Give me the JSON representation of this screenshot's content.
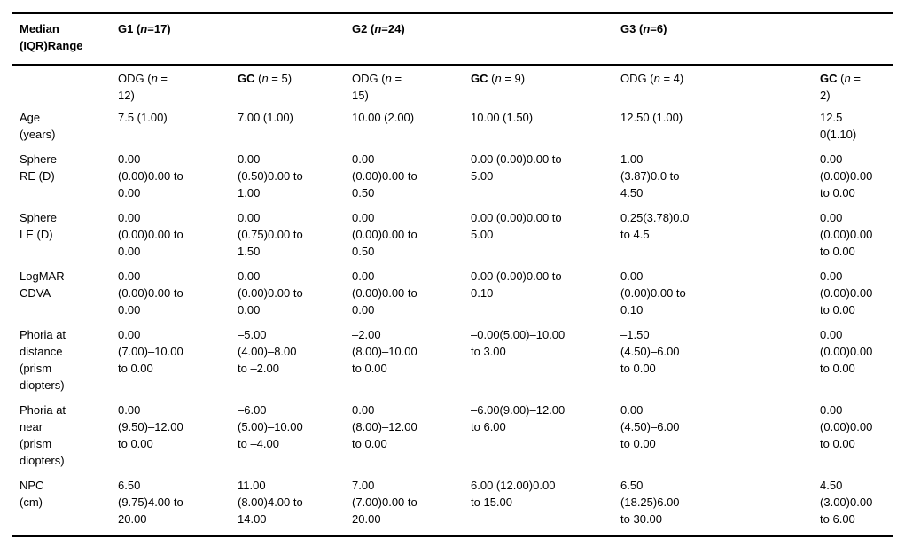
{
  "colors": {
    "text": "#000000",
    "background": "#ffffff",
    "rule": "#000000"
  },
  "table": {
    "corner_header": "Median\n(IQR)Range",
    "groups": [
      {
        "pre": "G1 (",
        "n": "n",
        "post": "=17)"
      },
      {
        "pre": "G2 (",
        "n": "n",
        "post": "=24)"
      },
      {
        "pre": "G3 (",
        "n": "n",
        "post": "=6)"
      }
    ],
    "subheaders": [
      {
        "name": "ODG",
        "pre": " (",
        "n": "n",
        "post": " =\n12)"
      },
      {
        "name": "GC",
        "pre": " (",
        "n": "n",
        "post": " = 5)"
      },
      {
        "name": "ODG",
        "pre": " (",
        "n": "n",
        "post": " =\n15)"
      },
      {
        "name": "GC",
        "pre": " (",
        "n": "n",
        "post": " = 9)"
      },
      {
        "name": "ODG",
        "pre": " (",
        "n": "n",
        "post": " = 4)"
      },
      {
        "name": "GC",
        "pre": " (",
        "n": "n",
        "post": " =\n2)"
      }
    ],
    "rows": [
      {
        "label": "Age\n(years)",
        "cells": [
          "7.5 (1.00)",
          "7.00 (1.00)",
          "10.00 (2.00)",
          "10.00 (1.50)",
          "12.50 (1.00)",
          "12.5\n0(1.10)"
        ]
      },
      {
        "label": "Sphere\nRE (D)",
        "cells": [
          "0.00\n(0.00)0.00 to\n0.00",
          "0.00\n(0.50)0.00 to\n1.00",
          "0.00\n(0.00)0.00 to\n0.50",
          "0.00 (0.00)0.00 to\n5.00",
          "1.00\n(3.87)0.0 to\n4.50",
          "0.00\n(0.00)0.00\nto 0.00"
        ]
      },
      {
        "label": "Sphere\nLE (D)",
        "cells": [
          "0.00\n(0.00)0.00 to\n0.00",
          "0.00\n(0.75)0.00 to\n1.50",
          "0.00\n(0.00)0.00 to\n0.50",
          "0.00 (0.00)0.00 to\n5.00",
          "0.25(3.78)0.0\nto 4.5",
          "0.00\n(0.00)0.00\nto 0.00"
        ]
      },
      {
        "label": "LogMAR\nCDVA",
        "cells": [
          "0.00\n(0.00)0.00 to\n0.00",
          "0.00\n(0.00)0.00 to\n0.00",
          "0.00\n(0.00)0.00 to\n0.00",
          "0.00 (0.00)0.00 to\n0.10",
          "0.00\n(0.00)0.00 to\n0.10",
          "0.00\n(0.00)0.00\nto 0.00"
        ]
      },
      {
        "label": "Phoria at\ndistance\n(prism\ndiopters)",
        "cells": [
          "0.00\n(7.00)–10.00\nto 0.00",
          "–5.00\n(4.00)–8.00\nto –2.00",
          "–2.00\n(8.00)–10.00\nto 0.00",
          "–0.00(5.00)–10.00\nto 3.00",
          "–1.50\n(4.50)–6.00\nto 0.00",
          "0.00\n(0.00)0.00\nto 0.00"
        ]
      },
      {
        "label": "Phoria at\nnear\n(prism\ndiopters)",
        "cells": [
          "0.00\n(9.50)–12.00\nto 0.00",
          "–6.00\n(5.00)–10.00\nto –4.00",
          "0.00\n(8.00)–12.00\nto 0.00",
          "–6.00(9.00)–12.00\nto 6.00",
          "0.00\n(4.50)–6.00\nto 0.00",
          "0.00\n(0.00)0.00\nto 0.00"
        ]
      },
      {
        "label": "NPC\n(cm)",
        "cells": [
          "6.50\n(9.75)4.00 to\n20.00",
          "11.00\n(8.00)4.00 to\n14.00",
          "7.00\n(7.00)0.00 to\n20.00",
          "6.00 (12.00)0.00\nto 15.00",
          "6.50\n(18.25)6.00\nto 30.00",
          "4.50\n(3.00)0.00\nto 6.00"
        ]
      }
    ]
  }
}
